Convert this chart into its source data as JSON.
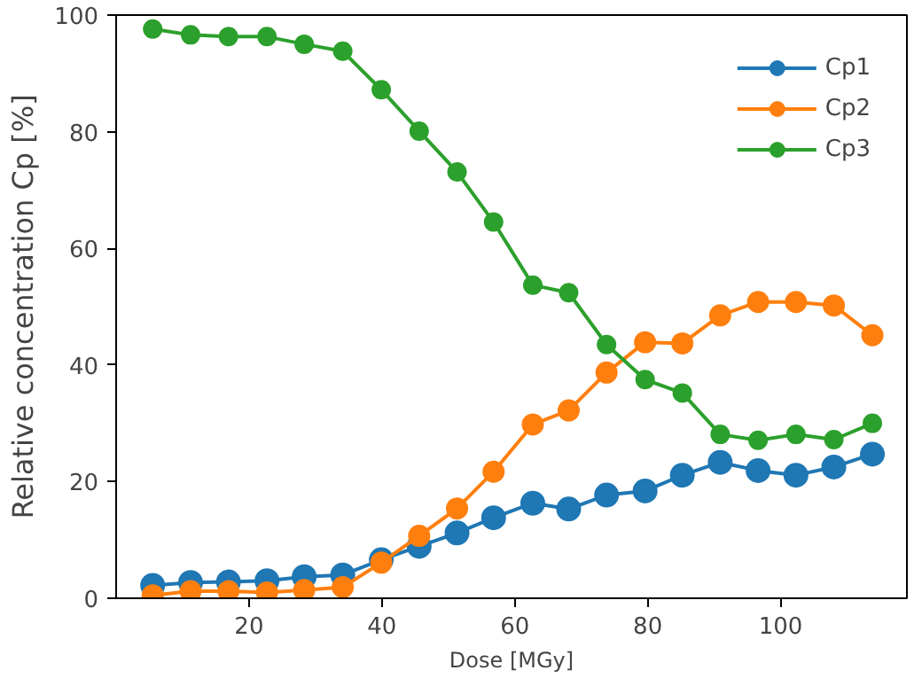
{
  "chart_data": {
    "type": "line",
    "xlabel": "Dose [MGy]",
    "ylabel": "Relative concentration Cp [%]",
    "x": [
      5.5,
      11.2,
      16.9,
      22.7,
      28.3,
      34.1,
      39.9,
      45.6,
      51.3,
      56.8,
      62.7,
      68.1,
      73.8,
      79.6,
      85.2,
      90.9,
      96.6,
      102.3,
      108.0,
      113.8
    ],
    "series": [
      {
        "name": "Cp1",
        "color": "#1f77b4",
        "values": [
          2.2,
          2.7,
          2.8,
          3.0,
          3.7,
          4.0,
          6.6,
          8.9,
          11.2,
          13.8,
          16.3,
          15.3,
          17.7,
          18.4,
          21.1,
          23.3,
          21.9,
          21.1,
          22.5,
          24.7
        ]
      },
      {
        "name": "Cp2",
        "color": "#ff7f0e",
        "values": [
          0.5,
          1.2,
          1.2,
          1.0,
          1.4,
          1.9,
          6.1,
          10.7,
          15.4,
          21.7,
          29.8,
          32.2,
          38.7,
          43.9,
          43.7,
          48.5,
          50.8,
          50.8,
          50.2,
          45.1
        ]
      },
      {
        "name": "Cp3",
        "color": "#2ca02c",
        "values": [
          97.6,
          96.6,
          96.3,
          96.3,
          95.0,
          93.8,
          87.2,
          80.1,
          73.1,
          64.5,
          53.7,
          52.4,
          43.5,
          37.5,
          35.2,
          28.1,
          27.1,
          28.1,
          27.2,
          30.0
        ]
      }
    ],
    "xlim": [
      0,
      119
    ],
    "ylim": [
      0,
      100
    ],
    "xticks": [
      20,
      40,
      60,
      80,
      100
    ],
    "yticks": [
      0,
      20,
      40,
      60,
      80,
      100
    ],
    "grid": false,
    "legend": "top right",
    "marker": "circle",
    "line_style": "solid"
  }
}
